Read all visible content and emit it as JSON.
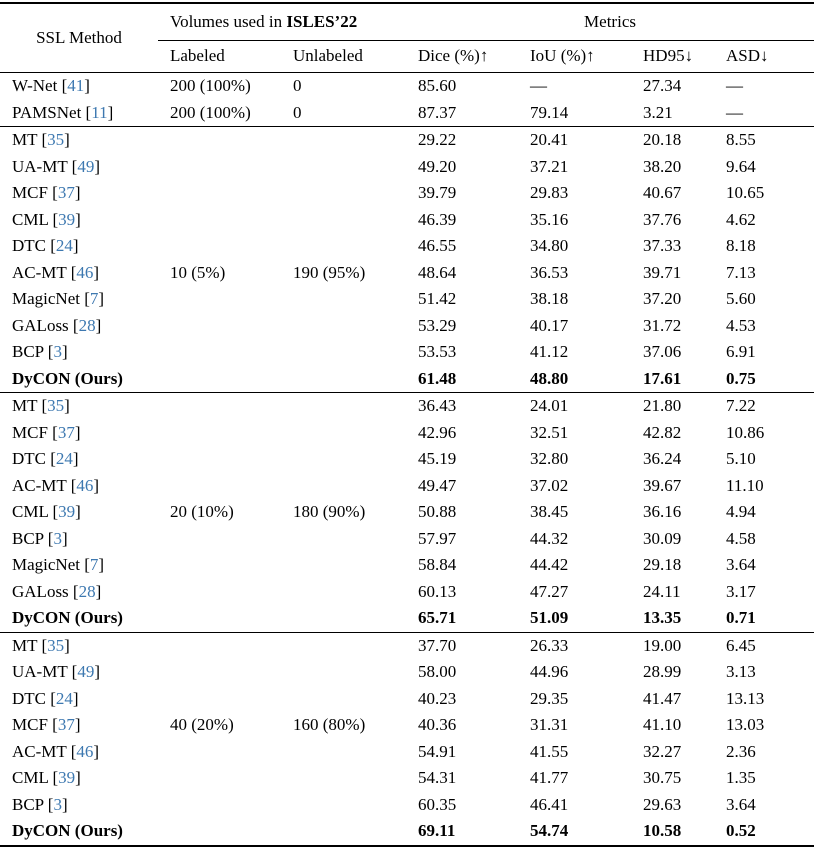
{
  "colors": {
    "citation": "#3d78b0"
  },
  "table": {
    "header": {
      "method": "SSL Method",
      "volumes_prefix": "Volumes used in ",
      "volumes_bold": "ISLES’22",
      "metrics": "Metrics",
      "sub": [
        "Labeled",
        "Unlabeled",
        "Dice (%)↑",
        "IoU (%)↑",
        "HD95↓",
        "ASD↓"
      ]
    },
    "sections": [
      {
        "rows": [
          {
            "method": "W-Net",
            "cite": "41",
            "labeled": "200 (100%)",
            "unlabeled": "0",
            "dice": "85.60",
            "iou": "—",
            "hd95": "27.34",
            "asd": "—",
            "bold": false
          },
          {
            "method": "PAMSNet",
            "cite": "11",
            "labeled": "200 (100%)",
            "unlabeled": "0",
            "dice": "87.37",
            "iou": "79.14",
            "hd95": "3.21",
            "asd": "—",
            "bold": false
          }
        ]
      },
      {
        "rows": [
          {
            "method": "MT",
            "cite": "35",
            "labeled": "",
            "unlabeled": "",
            "dice": "29.22",
            "iou": "20.41",
            "hd95": "20.18",
            "asd": "8.55",
            "bold": false
          },
          {
            "method": "UA-MT",
            "cite": "49",
            "labeled": "",
            "unlabeled": "",
            "dice": "49.20",
            "iou": "37.21",
            "hd95": "38.20",
            "asd": "9.64",
            "bold": false
          },
          {
            "method": "MCF",
            "cite": "37",
            "labeled": "",
            "unlabeled": "",
            "dice": "39.79",
            "iou": "29.83",
            "hd95": "40.67",
            "asd": "10.65",
            "bold": false
          },
          {
            "method": "CML",
            "cite": "39",
            "labeled": "",
            "unlabeled": "",
            "dice": "46.39",
            "iou": "35.16",
            "hd95": "37.76",
            "asd": "4.62",
            "bold": false
          },
          {
            "method": "DTC",
            "cite": "24",
            "labeled": "",
            "unlabeled": "",
            "dice": "46.55",
            "iou": "34.80",
            "hd95": "37.33",
            "asd": "8.18",
            "bold": false
          },
          {
            "method": "AC-MT",
            "cite": "46",
            "labeled": "10 (5%)",
            "unlabeled": "190 (95%)",
            "dice": "48.64",
            "iou": "36.53",
            "hd95": "39.71",
            "asd": "7.13",
            "bold": false
          },
          {
            "method": "MagicNet",
            "cite": "7",
            "labeled": "",
            "unlabeled": "",
            "dice": "51.42",
            "iou": "38.18",
            "hd95": "37.20",
            "asd": "5.60",
            "bold": false
          },
          {
            "method": "GALoss",
            "cite": "28",
            "labeled": "",
            "unlabeled": "",
            "dice": "53.29",
            "iou": "40.17",
            "hd95": "31.72",
            "asd": "4.53",
            "bold": false
          },
          {
            "method": "BCP",
            "cite": "3",
            "labeled": "",
            "unlabeled": "",
            "dice": "53.53",
            "iou": "41.12",
            "hd95": "37.06",
            "asd": "6.91",
            "bold": false
          },
          {
            "method": "DyCON (Ours)",
            "cite": null,
            "labeled": "",
            "unlabeled": "",
            "dice": "61.48",
            "iou": "48.80",
            "hd95": "17.61",
            "asd": "0.75",
            "bold": true
          }
        ]
      },
      {
        "rows": [
          {
            "method": "MT",
            "cite": "35",
            "labeled": "",
            "unlabeled": "",
            "dice": "36.43",
            "iou": "24.01",
            "hd95": "21.80",
            "asd": "7.22",
            "bold": false
          },
          {
            "method": "MCF",
            "cite": "37",
            "labeled": "",
            "unlabeled": "",
            "dice": "42.96",
            "iou": "32.51",
            "hd95": "42.82",
            "asd": "10.86",
            "bold": false
          },
          {
            "method": "DTC",
            "cite": "24",
            "labeled": "",
            "unlabeled": "",
            "dice": "45.19",
            "iou": "32.80",
            "hd95": "36.24",
            "asd": "5.10",
            "bold": false
          },
          {
            "method": "AC-MT",
            "cite": "46",
            "labeled": "",
            "unlabeled": "",
            "dice": "49.47",
            "iou": "37.02",
            "hd95": "39.67",
            "asd": "11.10",
            "bold": false
          },
          {
            "method": "CML",
            "cite": "39",
            "labeled": "20 (10%)",
            "unlabeled": "180 (90%)",
            "dice": "50.88",
            "iou": "38.45",
            "hd95": "36.16",
            "asd": "4.94",
            "bold": false
          },
          {
            "method": "BCP",
            "cite": "3",
            "labeled": "",
            "unlabeled": "",
            "dice": "57.97",
            "iou": "44.32",
            "hd95": "30.09",
            "asd": "4.58",
            "bold": false
          },
          {
            "method": "MagicNet",
            "cite": "7",
            "labeled": "",
            "unlabeled": "",
            "dice": "58.84",
            "iou": "44.42",
            "hd95": "29.18",
            "asd": "3.64",
            "bold": false
          },
          {
            "method": "GALoss",
            "cite": "28",
            "labeled": "",
            "unlabeled": "",
            "dice": "60.13",
            "iou": "47.27",
            "hd95": "24.11",
            "asd": "3.17",
            "bold": false
          },
          {
            "method": "DyCON (Ours)",
            "cite": null,
            "labeled": "",
            "unlabeled": "",
            "dice": "65.71",
            "iou": "51.09",
            "hd95": "13.35",
            "asd": "0.71",
            "bold": true
          }
        ]
      },
      {
        "rows": [
          {
            "method": "MT",
            "cite": "35",
            "labeled": "",
            "unlabeled": "",
            "dice": "37.70",
            "iou": "26.33",
            "hd95": "19.00",
            "asd": "6.45",
            "bold": false
          },
          {
            "method": "UA-MT",
            "cite": "49",
            "labeled": "",
            "unlabeled": "",
            "dice": "58.00",
            "iou": "44.96",
            "hd95": "28.99",
            "asd": "3.13",
            "bold": false
          },
          {
            "method": "DTC",
            "cite": "24",
            "labeled": "",
            "unlabeled": "",
            "dice": "40.23",
            "iou": "29.35",
            "hd95": "41.47",
            "asd": "13.13",
            "bold": false
          },
          {
            "method": "MCF",
            "cite": "37",
            "labeled": "40 (20%)",
            "unlabeled": "160 (80%)",
            "dice": "40.36",
            "iou": "31.31",
            "hd95": "41.10",
            "asd": "13.03",
            "bold": false
          },
          {
            "method": "AC-MT",
            "cite": "46",
            "labeled": "",
            "unlabeled": "",
            "dice": "54.91",
            "iou": "41.55",
            "hd95": "32.27",
            "asd": "2.36",
            "bold": false
          },
          {
            "method": "CML",
            "cite": "39",
            "labeled": "",
            "unlabeled": "",
            "dice": "54.31",
            "iou": "41.77",
            "hd95": "30.75",
            "asd": "1.35",
            "bold": false
          },
          {
            "method": "BCP",
            "cite": "3",
            "labeled": "",
            "unlabeled": "",
            "dice": "60.35",
            "iou": "46.41",
            "hd95": "29.63",
            "asd": "3.64",
            "bold": false
          },
          {
            "method": "DyCON (Ours)",
            "cite": null,
            "labeled": "",
            "unlabeled": "",
            "dice": "69.11",
            "iou": "54.74",
            "hd95": "10.58",
            "asd": "0.52",
            "bold": true
          }
        ]
      }
    ]
  }
}
